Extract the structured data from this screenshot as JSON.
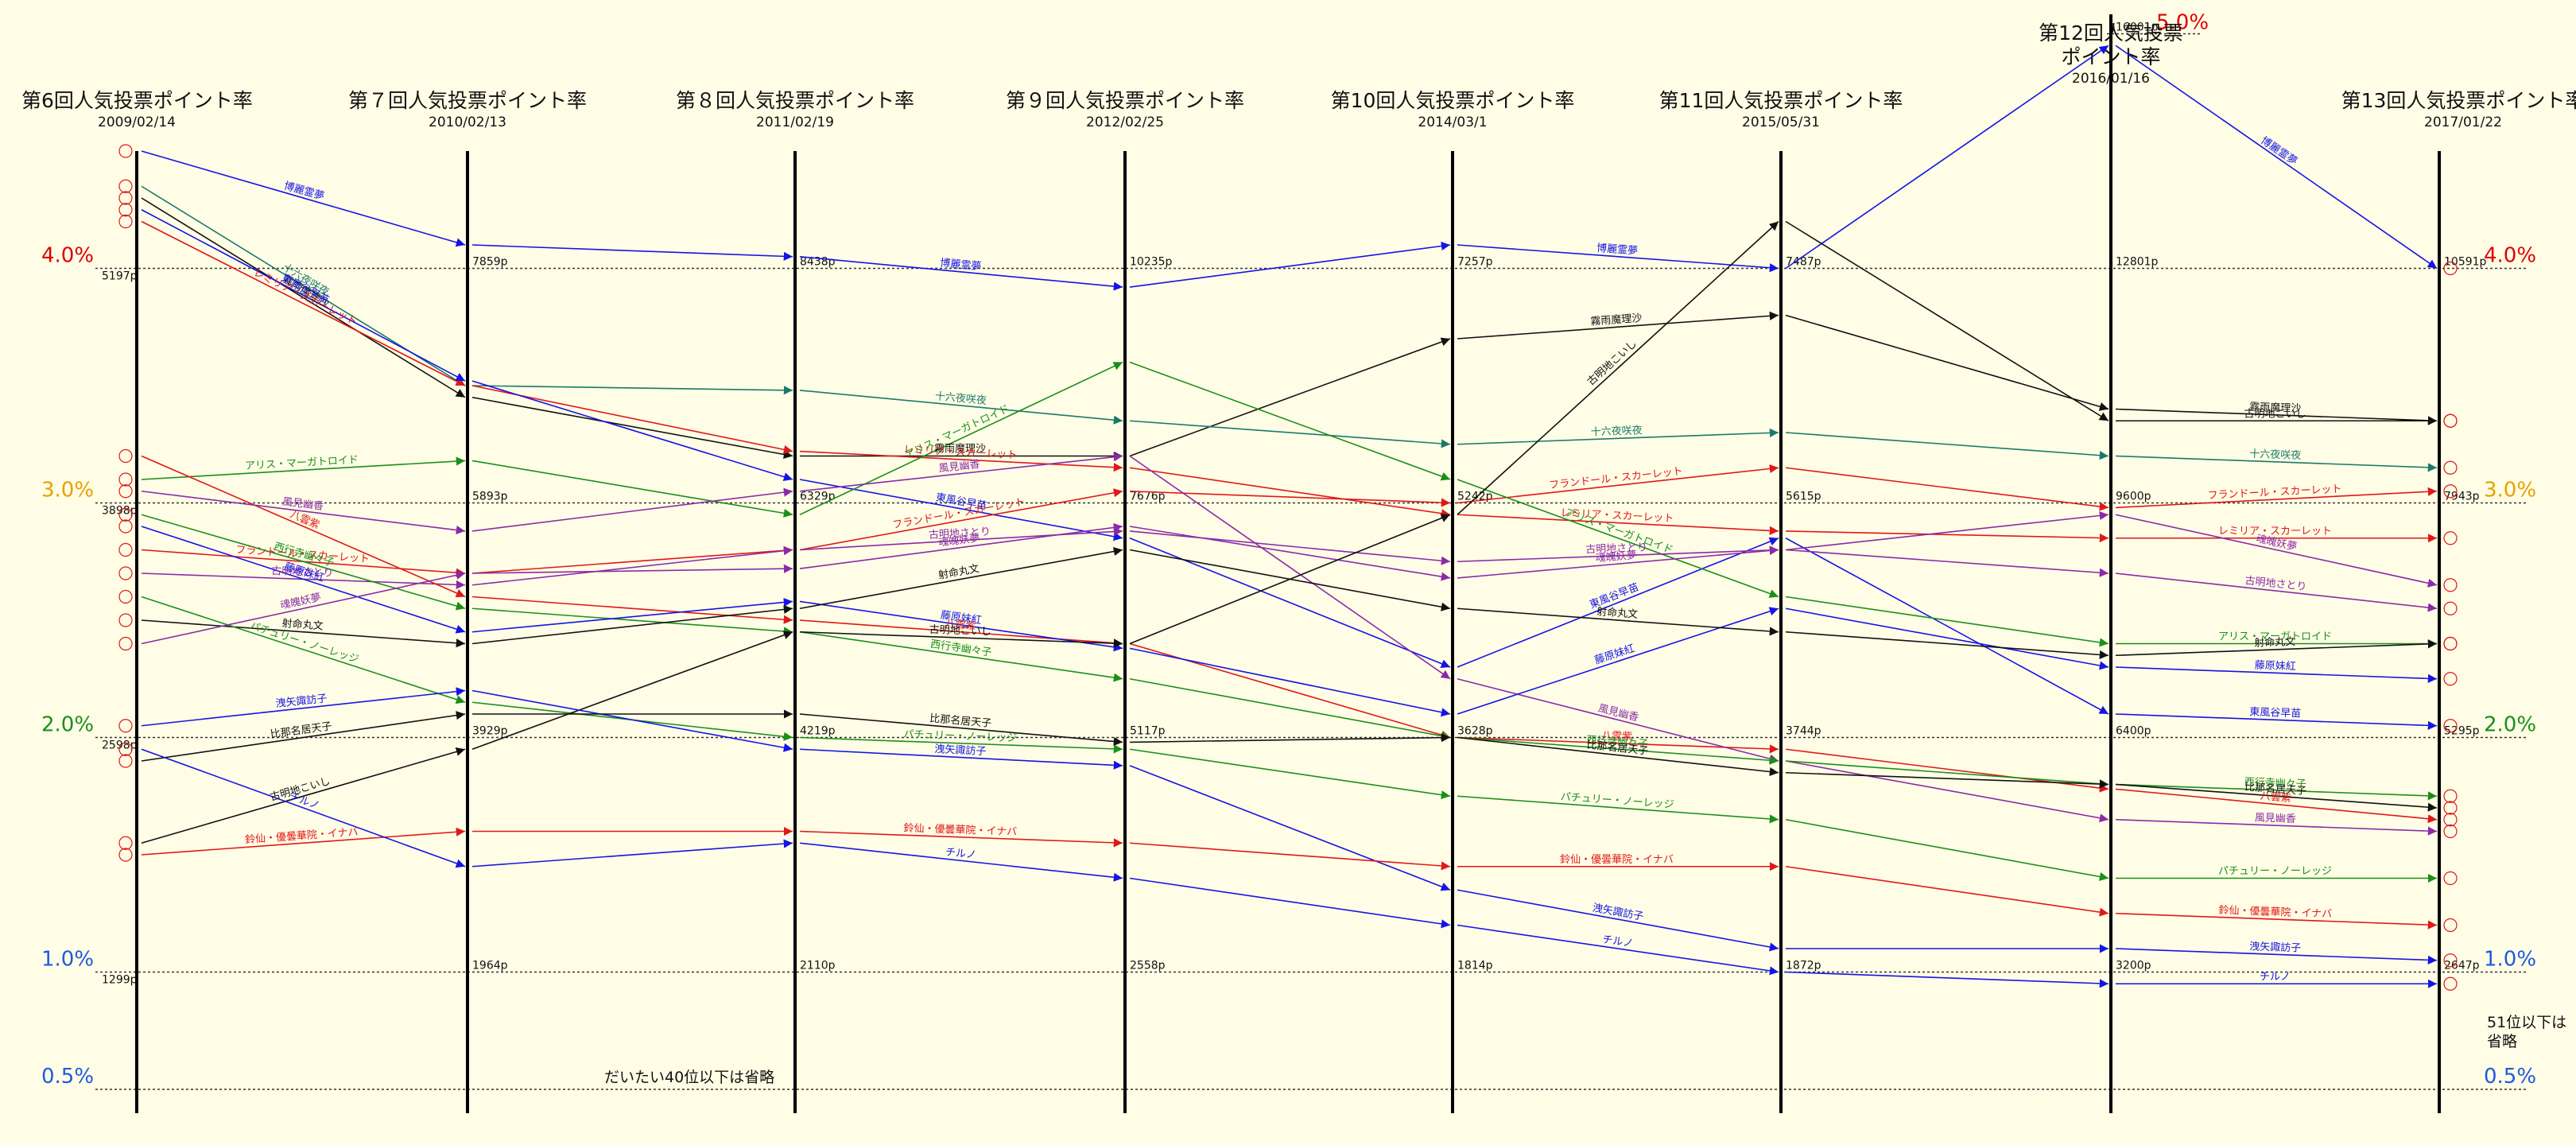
{
  "chart_data": {
    "type": "line",
    "y_range": [
      0.5,
      5.0
    ],
    "y_scale": "linear",
    "grid": "horizontal dotted lines at 0.5%, 1.0%, 2.0%, 3.0%, 4.0%, 5.0%",
    "y_ticks": [
      {
        "v": 4.0,
        "label": "4.0%",
        "color": "#e00000"
      },
      {
        "v": 3.0,
        "label": "3.0%",
        "color": "#e8a000"
      },
      {
        "v": 2.0,
        "label": "2.0%",
        "color": "#1a8f1a"
      },
      {
        "v": 1.0,
        "label": "1.0%",
        "color": "#1e5ae0"
      },
      {
        "v": 0.5,
        "label": "0.5%",
        "color": "#1e5ae0"
      },
      {
        "v": 5.0,
        "label": "5.0%",
        "color": "#e00000"
      }
    ],
    "polls": [
      {
        "title": "第6回人気投票ポイント率",
        "date": "2009/02/14"
      },
      {
        "title": "第７回人気投票ポイント率",
        "date": "2010/02/13"
      },
      {
        "title": "第８回人気投票ポイント率",
        "date": "2011/02/19"
      },
      {
        "title": "第９回人気投票ポイント率",
        "date": "2012/02/25"
      },
      {
        "title": "第10回人気投票ポイント率",
        "date": "2014/03/1"
      },
      {
        "title": "第11回人気投票ポイント率",
        "date": "2015/05/31"
      },
      {
        "title": "第12回人気投票\nポイント率",
        "date": "2016/01/16"
      },
      {
        "title": "第13回人気投票ポイント率",
        "date": "2017/01/22"
      }
    ],
    "gridline_points": [
      {
        "level": 4.0,
        "points": [
          "5197p",
          "7859p",
          "8438p",
          "10235p",
          "7257p",
          "7487p",
          "12801p",
          "10591p"
        ]
      },
      {
        "level": 3.0,
        "points": [
          "3898p",
          "5893p",
          "6329p",
          "7676p",
          "5242p",
          "5615p",
          "9600p",
          "7943p"
        ]
      },
      {
        "level": 2.0,
        "points": [
          "2598p",
          "3929p",
          "4219p",
          "5117p",
          "3628p",
          "3744p",
          "6400p",
          "5295p"
        ]
      },
      {
        "level": 1.0,
        "points": [
          "1299p",
          "1964p",
          "2110p",
          "2558p",
          "1814p",
          "1872p",
          "3200p",
          "2647p"
        ]
      },
      {
        "level": 5.0,
        "points": [
          "",
          "",
          "",
          "",
          "",
          "",
          "16001p",
          ""
        ]
      }
    ],
    "series": [
      {
        "name": "博麗霊夢",
        "color": "#1414e6",
        "values": [
          4.5,
          4.1,
          4.05,
          3.92,
          4.1,
          4.0,
          4.95,
          4.0
        ]
      },
      {
        "name": "霧雨魔理沙",
        "color": "#111111",
        "values": [
          4.3,
          3.45,
          3.2,
          3.2,
          3.7,
          3.8,
          3.4,
          3.35
        ]
      },
      {
        "name": "十六夜咲夜",
        "color": "#1a7a6a",
        "values": [
          4.35,
          3.5,
          3.48,
          3.35,
          3.25,
          3.3,
          3.2,
          3.15
        ]
      },
      {
        "name": "レミリア・スカーレット",
        "color": "#e01818",
        "values": [
          4.2,
          3.5,
          3.22,
          3.15,
          2.95,
          2.88,
          2.85,
          2.85
        ]
      },
      {
        "name": "東風谷早苗",
        "color": "#1414e6",
        "values": [
          4.25,
          3.52,
          3.1,
          2.85,
          2.3,
          2.85,
          2.1,
          2.05
        ]
      },
      {
        "name": "フランドール・スカーレット",
        "color": "#e01818",
        "values": [
          2.8,
          2.7,
          2.8,
          3.05,
          3.0,
          3.15,
          2.98,
          3.05
        ]
      },
      {
        "name": "アリス・マーガトロイド",
        "color": "#1a8f1a",
        "values": [
          3.1,
          3.18,
          2.95,
          3.6,
          3.1,
          2.6,
          2.4,
          2.4
        ]
      },
      {
        "name": "古明地さとり",
        "color": "#8a2aa8",
        "values": [
          2.7,
          2.65,
          2.8,
          2.88,
          2.75,
          2.8,
          2.7,
          2.55
        ]
      },
      {
        "name": "八雲紫",
        "color": "#e01818",
        "values": [
          3.2,
          2.6,
          2.5,
          2.4,
          2.0,
          1.95,
          1.78,
          1.65
        ]
      },
      {
        "name": "風見幽香",
        "color": "#8a2aa8",
        "values": [
          3.05,
          2.88,
          3.05,
          3.2,
          2.25,
          1.9,
          1.65,
          1.6
        ]
      },
      {
        "name": "西行寺幽々子",
        "color": "#1a8f1a",
        "values": [
          2.95,
          2.55,
          2.45,
          2.25,
          2.0,
          1.9,
          1.8,
          1.75
        ]
      },
      {
        "name": "藤原妹紅",
        "color": "#1414e6",
        "values": [
          2.9,
          2.45,
          2.58,
          2.38,
          2.1,
          2.55,
          2.3,
          2.25
        ]
      },
      {
        "name": "射命丸文",
        "color": "#111111",
        "values": [
          2.5,
          2.4,
          2.55,
          2.8,
          2.55,
          2.45,
          2.35,
          2.4
        ]
      },
      {
        "name": "パチュリー・ノーレッジ",
        "color": "#1a8f1a",
        "values": [
          2.6,
          2.15,
          2.0,
          1.95,
          1.75,
          1.65,
          1.4,
          1.4
        ]
      },
      {
        "name": "魂魄妖夢",
        "color": "#8a2aa8",
        "values": [
          2.4,
          2.7,
          2.72,
          2.9,
          2.68,
          2.8,
          2.95,
          2.65
        ]
      },
      {
        "name": "古明地こいし",
        "color": "#111111",
        "values": [
          1.55,
          1.95,
          2.45,
          2.4,
          2.95,
          4.2,
          3.35,
          3.35
        ]
      },
      {
        "name": "洩矢諏訪子",
        "color": "#1414e6",
        "values": [
          2.05,
          2.2,
          1.95,
          1.88,
          1.35,
          1.1,
          1.1,
          1.05
        ]
      },
      {
        "name": "鈴仙・優曇華院・イナバ",
        "color": "#e01818",
        "values": [
          1.5,
          1.6,
          1.6,
          1.55,
          1.45,
          1.45,
          1.25,
          1.2
        ]
      },
      {
        "name": "比那名居天子",
        "color": "#111111",
        "values": [
          1.9,
          2.1,
          2.1,
          1.98,
          2.0,
          1.85,
          1.8,
          1.7
        ]
      },
      {
        "name": "チルノ",
        "color": "#1414e6",
        "values": [
          1.95,
          1.45,
          1.55,
          1.4,
          1.2,
          1.0,
          0.95,
          0.95
        ]
      }
    ],
    "annotations": [
      "だいたい40位以下は省略",
      "51位以下は\n省略"
    ]
  }
}
